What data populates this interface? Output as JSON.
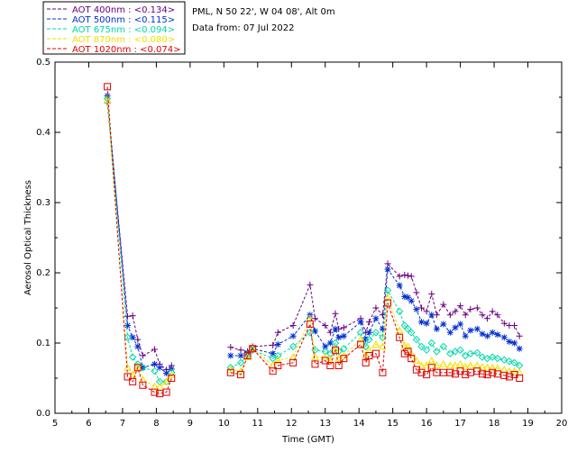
{
  "header": {
    "station": "PML, N 50 22', W 04 08', Alt 0m",
    "date": "Data from: 07 Jul 2022"
  },
  "chart_data": {
    "type": "scatter",
    "title": "",
    "xlabel": "Time (GMT)",
    "ylabel": "Aerosol Optical Thickness",
    "xlim": [
      5,
      20
    ],
    "ylim": [
      0,
      0.5
    ],
    "xticks": [
      5,
      6,
      7,
      8,
      9,
      10,
      11,
      12,
      13,
      14,
      15,
      16,
      17,
      18,
      19,
      20
    ],
    "yticks": [
      0.0,
      0.1,
      0.2,
      0.3,
      0.4,
      0.5
    ],
    "ytick_labels": [
      "0.0",
      "0.1",
      "0.2",
      "0.3",
      "0.4",
      "0.5"
    ],
    "legend": [
      "AOT  400nm : <0.134>",
      "AOT  500nm : <0.115>",
      "AOT  675nm : <0.094>",
      "AOT  870nm : <0.080>",
      "AOT 1020nm : <0.074>"
    ],
    "series": [
      {
        "name": "AOT  400nm : <0.134>",
        "color": "#6a0080",
        "marker": "plus",
        "line": true,
        "x": [
          6.55,
          7.15,
          7.3,
          7.45,
          7.6,
          7.95,
          8.1,
          8.3,
          8.45,
          10.2,
          10.5,
          10.7,
          10.85,
          11.45,
          11.6,
          12.05,
          12.55,
          12.7,
          13.0,
          13.15,
          13.3,
          13.4,
          13.55,
          14.05,
          14.2,
          14.3,
          14.5,
          14.7,
          14.85,
          15.2,
          15.35,
          15.45,
          15.55,
          15.7,
          15.85,
          16.0,
          16.15,
          16.3,
          16.5,
          16.7,
          16.85,
          17.0,
          17.15,
          17.3,
          17.5,
          17.65,
          17.8,
          17.95,
          18.1,
          18.3,
          18.45,
          18.6,
          18.75
        ],
        "y": [
          0.442,
          0.138,
          0.139,
          0.105,
          0.082,
          0.091,
          0.07,
          0.062,
          0.068,
          0.094,
          0.09,
          0.088,
          0.095,
          0.097,
          0.115,
          0.125,
          0.183,
          0.135,
          0.125,
          0.115,
          0.142,
          0.12,
          0.122,
          0.135,
          0.115,
          0.13,
          0.15,
          0.14,
          0.213,
          0.195,
          0.197,
          0.196,
          0.195,
          0.172,
          0.15,
          0.145,
          0.17,
          0.14,
          0.155,
          0.14,
          0.145,
          0.153,
          0.14,
          0.148,
          0.15,
          0.14,
          0.135,
          0.145,
          0.14,
          0.128,
          0.125,
          0.125,
          0.11
        ]
      },
      {
        "name": "AOT  500nm : <0.115>",
        "color": "#0030d0",
        "marker": "star",
        "line": true,
        "x": [
          6.55,
          7.15,
          7.3,
          7.45,
          7.6,
          7.95,
          8.1,
          8.3,
          8.45,
          10.2,
          10.5,
          10.7,
          10.85,
          11.45,
          11.6,
          12.05,
          12.55,
          12.7,
          13.0,
          13.15,
          13.3,
          13.4,
          13.55,
          14.05,
          14.2,
          14.3,
          14.5,
          14.7,
          14.85,
          15.2,
          15.35,
          15.45,
          15.55,
          15.7,
          15.85,
          16.0,
          16.15,
          16.3,
          16.5,
          16.7,
          16.85,
          17.0,
          17.15,
          17.3,
          17.5,
          17.65,
          17.8,
          17.95,
          18.1,
          18.3,
          18.45,
          18.6,
          18.75
        ],
        "y": [
          0.452,
          0.125,
          0.108,
          0.095,
          0.065,
          0.07,
          0.065,
          0.057,
          0.063,
          0.082,
          0.082,
          0.085,
          0.092,
          0.085,
          0.098,
          0.11,
          0.14,
          0.117,
          0.095,
          0.1,
          0.12,
          0.108,
          0.11,
          0.13,
          0.105,
          0.115,
          0.135,
          0.12,
          0.205,
          0.182,
          0.166,
          0.165,
          0.16,
          0.148,
          0.13,
          0.128,
          0.14,
          0.12,
          0.127,
          0.115,
          0.122,
          0.127,
          0.11,
          0.118,
          0.12,
          0.113,
          0.11,
          0.115,
          0.112,
          0.108,
          0.102,
          0.1,
          0.092
        ]
      },
      {
        "name": "AOT  675nm : <0.094>",
        "color": "#00d8a8",
        "marker": "diamond",
        "line": true,
        "x": [
          6.55,
          7.15,
          7.3,
          7.45,
          7.6,
          7.95,
          8.1,
          8.3,
          8.45,
          10.2,
          10.5,
          10.7,
          10.85,
          11.45,
          11.6,
          12.05,
          12.55,
          12.7,
          13.0,
          13.15,
          13.3,
          13.4,
          13.55,
          14.05,
          14.2,
          14.3,
          14.5,
          14.7,
          14.85,
          15.2,
          15.35,
          15.45,
          15.55,
          15.7,
          15.85,
          16.0,
          16.15,
          16.3,
          16.5,
          16.7,
          16.85,
          17.0,
          17.15,
          17.3,
          17.5,
          17.65,
          17.8,
          17.95,
          18.1,
          18.3,
          18.45,
          18.6,
          18.75
        ],
        "y": [
          0.448,
          0.108,
          0.08,
          0.07,
          0.065,
          0.06,
          0.045,
          0.045,
          0.058,
          0.065,
          0.072,
          0.083,
          0.09,
          0.078,
          0.082,
          0.095,
          0.115,
          0.09,
          0.088,
          0.085,
          0.1,
          0.088,
          0.092,
          0.115,
          0.095,
          0.105,
          0.115,
          0.108,
          0.175,
          0.145,
          0.125,
          0.12,
          0.115,
          0.105,
          0.095,
          0.09,
          0.1,
          0.088,
          0.095,
          0.085,
          0.088,
          0.09,
          0.082,
          0.085,
          0.086,
          0.08,
          0.078,
          0.08,
          0.078,
          0.076,
          0.074,
          0.072,
          0.068
        ]
      },
      {
        "name": "AOT  870nm : <0.080>",
        "color": "#f0e000",
        "marker": "triangle",
        "line": true,
        "x": [
          6.55,
          7.15,
          7.3,
          7.45,
          7.6,
          7.95,
          8.1,
          8.3,
          8.45,
          10.2,
          10.5,
          10.7,
          10.85,
          11.45,
          11.6,
          12.05,
          12.55,
          12.7,
          13.0,
          13.15,
          13.3,
          13.4,
          13.55,
          14.05,
          14.2,
          14.3,
          14.5,
          14.7,
          14.85,
          15.2,
          15.35,
          15.45,
          15.55,
          15.7,
          15.85,
          16.0,
          16.15,
          16.3,
          16.5,
          16.7,
          16.85,
          17.0,
          17.15,
          17.3,
          17.5,
          17.65,
          17.8,
          17.95,
          18.1,
          18.3,
          18.45,
          18.6,
          18.75
        ],
        "y": [
          0.446,
          0.065,
          0.055,
          0.066,
          0.048,
          0.038,
          0.038,
          0.045,
          0.055,
          0.062,
          0.06,
          0.08,
          0.092,
          0.068,
          0.075,
          0.08,
          0.135,
          0.08,
          0.08,
          0.075,
          0.092,
          0.078,
          0.082,
          0.105,
          0.082,
          0.09,
          0.098,
          0.095,
          0.165,
          0.118,
          0.096,
          0.095,
          0.085,
          0.075,
          0.068,
          0.068,
          0.075,
          0.068,
          0.07,
          0.068,
          0.068,
          0.07,
          0.066,
          0.068,
          0.068,
          0.066,
          0.065,
          0.065,
          0.064,
          0.062,
          0.06,
          0.06,
          0.058
        ]
      },
      {
        "name": "AOT 1020nm : <0.074>",
        "color": "#e00000",
        "marker": "square",
        "line": true,
        "x": [
          6.55,
          7.15,
          7.3,
          7.45,
          7.6,
          7.95,
          8.1,
          8.3,
          8.45,
          10.2,
          10.5,
          10.7,
          10.85,
          11.45,
          11.6,
          12.05,
          12.55,
          12.7,
          13.0,
          13.15,
          13.3,
          13.4,
          13.55,
          14.05,
          14.2,
          14.3,
          14.5,
          14.7,
          14.85,
          15.2,
          15.35,
          15.45,
          15.55,
          15.7,
          15.85,
          16.0,
          16.15,
          16.3,
          16.5,
          16.7,
          16.85,
          17.0,
          17.15,
          17.3,
          17.5,
          17.65,
          17.8,
          17.95,
          18.1,
          18.3,
          18.45,
          18.6,
          18.75
        ],
        "y": [
          0.465,
          0.052,
          0.045,
          0.065,
          0.04,
          0.03,
          0.028,
          0.03,
          0.05,
          0.058,
          0.055,
          0.082,
          0.092,
          0.06,
          0.068,
          0.072,
          0.127,
          0.07,
          0.075,
          0.068,
          0.09,
          0.068,
          0.078,
          0.098,
          0.072,
          0.082,
          0.085,
          0.058,
          0.157,
          0.108,
          0.085,
          0.088,
          0.078,
          0.062,
          0.058,
          0.055,
          0.065,
          0.058,
          0.058,
          0.058,
          0.056,
          0.06,
          0.055,
          0.058,
          0.06,
          0.056,
          0.055,
          0.058,
          0.056,
          0.054,
          0.052,
          0.055,
          0.05
        ]
      }
    ]
  }
}
